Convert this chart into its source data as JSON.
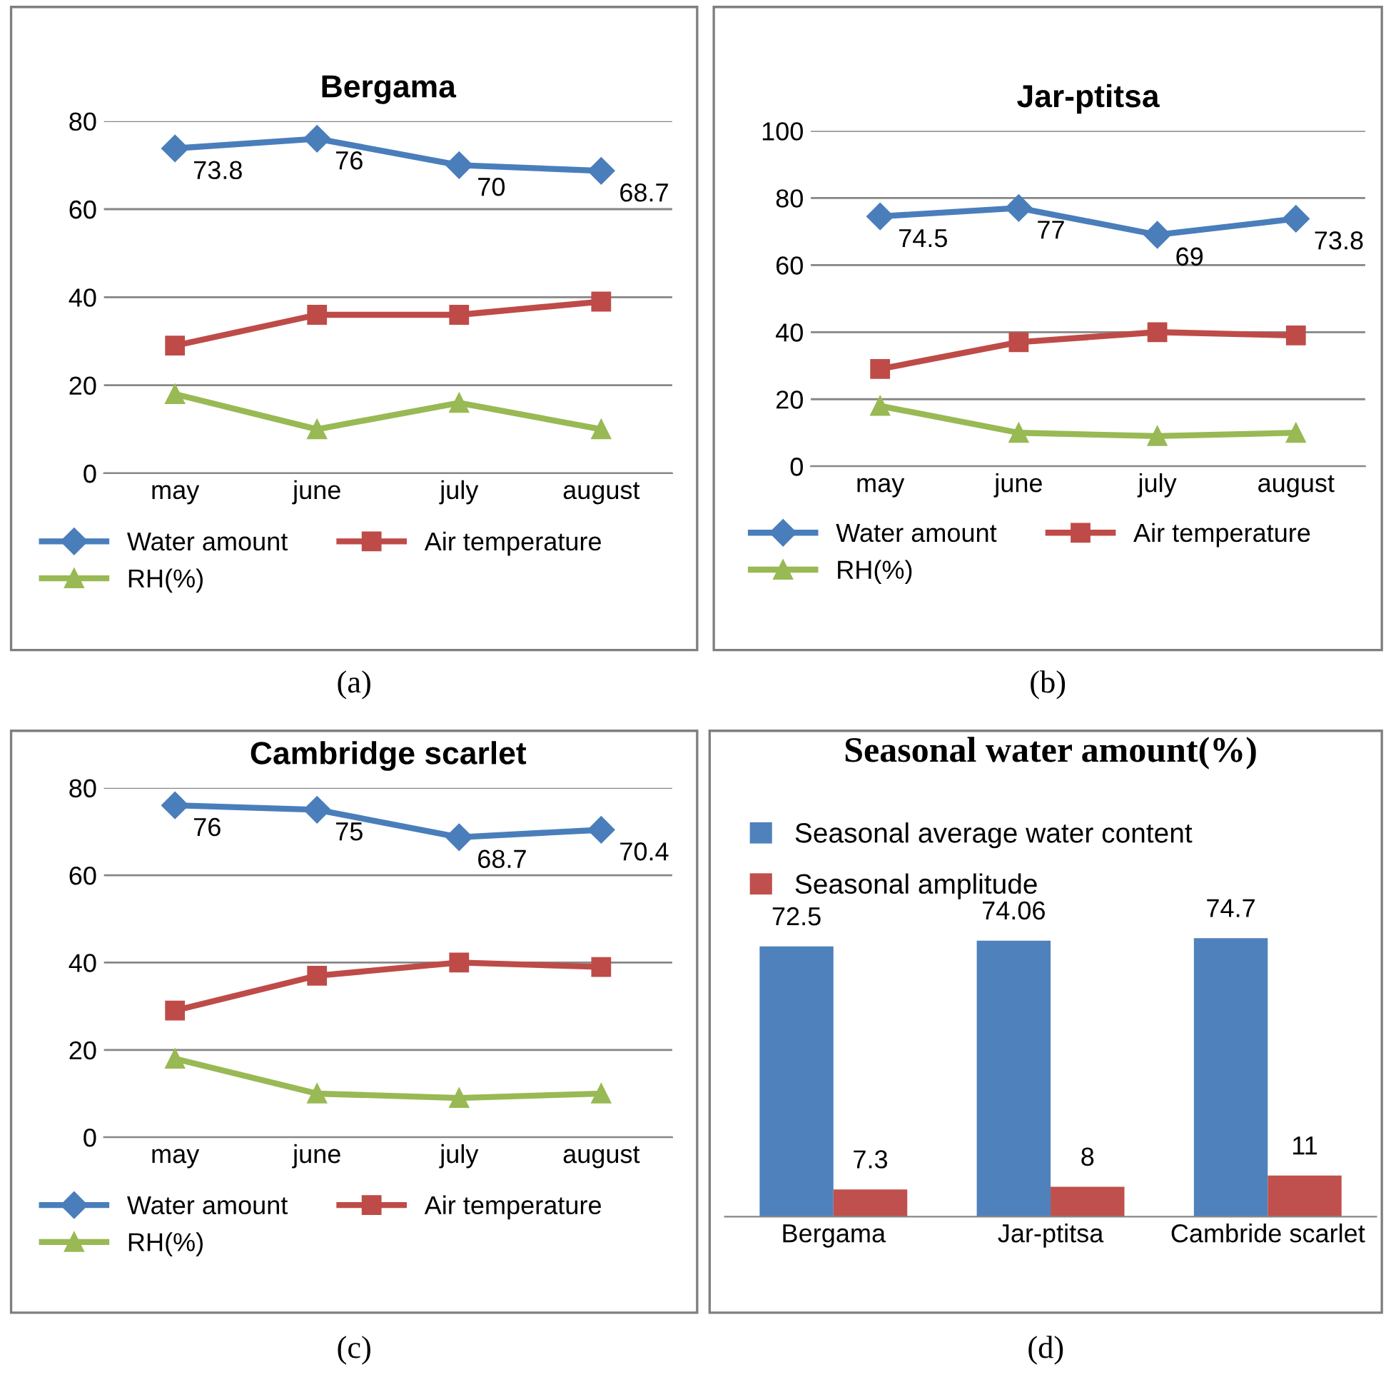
{
  "chart_data": [
    {
      "type": "line",
      "title": "Bergama",
      "categories": [
        "may",
        "june",
        "july",
        "august"
      ],
      "ylim": [
        0,
        80
      ],
      "yticks": [
        0,
        20,
        40,
        60,
        80
      ],
      "grid": "y",
      "legend": "bottom",
      "line_style": "solid",
      "annotations": [
        "(a)"
      ],
      "series": [
        {
          "name": "Water amount",
          "color": "#4a7ebb",
          "marker": "diamond",
          "values": [
            73.8,
            76,
            70,
            68.7
          ],
          "value_labels": [
            "73.8",
            "76",
            "70",
            "68.7"
          ]
        },
        {
          "name": "Air temperature",
          "color": "#be4b48",
          "marker": "square",
          "values": [
            29,
            36,
            36,
            39
          ]
        },
        {
          "name": "RH(%)",
          "color": "#98b954",
          "marker": "triangle",
          "values": [
            18,
            10,
            16,
            10
          ]
        }
      ]
    },
    {
      "type": "line",
      "title": "Jar-ptitsa",
      "categories": [
        "may",
        "june",
        "july",
        "august"
      ],
      "ylim": [
        0,
        100
      ],
      "yticks": [
        0,
        20,
        40,
        60,
        80,
        100
      ],
      "grid": "y",
      "legend": "bottom",
      "line_style": "solid",
      "annotations": [
        "(b)"
      ],
      "series": [
        {
          "name": "Water amount",
          "color": "#4a7ebb",
          "marker": "diamond",
          "values": [
            74.5,
            77,
            69,
            73.8
          ],
          "value_labels": [
            "74.5",
            "77",
            "69",
            "73.8"
          ]
        },
        {
          "name": "Air temperature",
          "color": "#be4b48",
          "marker": "square",
          "values": [
            29,
            37,
            40,
            39
          ]
        },
        {
          "name": "RH(%)",
          "color": "#98b954",
          "marker": "triangle",
          "values": [
            18,
            10,
            9,
            10
          ]
        }
      ]
    },
    {
      "type": "line",
      "title": "Cambridge scarlet",
      "categories": [
        "may",
        "june",
        "july",
        "august"
      ],
      "ylim": [
        0,
        80
      ],
      "yticks": [
        0,
        20,
        40,
        60,
        80
      ],
      "grid": "y",
      "legend": "bottom",
      "line_style": "solid",
      "annotations": [
        "(c)"
      ],
      "series": [
        {
          "name": "Water amount",
          "color": "#4a7ebb",
          "marker": "diamond",
          "values": [
            76,
            75,
            68.7,
            70.4
          ],
          "value_labels": [
            "76",
            "75",
            "68.7",
            "70.4"
          ]
        },
        {
          "name": "Air temperature",
          "color": "#be4b48",
          "marker": "square",
          "values": [
            29,
            37,
            40,
            39
          ]
        },
        {
          "name": "RH(%)",
          "color": "#98b954",
          "marker": "triangle",
          "values": [
            18,
            10,
            9,
            10
          ]
        }
      ]
    },
    {
      "type": "bar",
      "title": "Seasonal water amount(%)",
      "categories": [
        "Bergama",
        "Jar-ptitsa",
        "Cambride scarlet"
      ],
      "legend": "top",
      "data_labels": true,
      "annotations": [
        "(d)"
      ],
      "series": [
        {
          "name": "Seasonal average water content",
          "color": "#4f81bd",
          "values": [
            72.5,
            74.06,
            74.7
          ]
        },
        {
          "name": "Seasonal amplitude",
          "color": "#c0504d",
          "values": [
            7.3,
            8,
            11
          ]
        }
      ]
    }
  ]
}
